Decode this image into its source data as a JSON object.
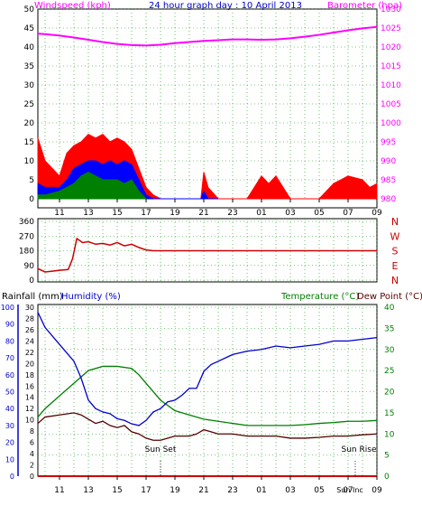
{
  "colors": {
    "wind": "#ff0000",
    "gust_fill": "#ff0000",
    "avg_fill": "#0000ff",
    "calm_fill": "#008000",
    "barometer": "#ff00ff",
    "winddir": "#cc0000",
    "humidity": "#0000cc",
    "temperature": "#008000",
    "dewpoint": "#550000",
    "rain": "#cc0000",
    "grid": "#009900",
    "axis_blue": "#0000cc",
    "frame": "#000000"
  },
  "chart_data": [
    {
      "type": "area",
      "title": "24 hour graph day : 10 April 2013",
      "left_axis_label": "Windspeed (kph)",
      "right_axis_label": "Barometer (hpa)",
      "x_tick_labels": [
        "11",
        "13",
        "15",
        "17",
        "19",
        "21",
        "23",
        "01",
        "03",
        "05",
        "07",
        "09"
      ],
      "left_ticks": [
        "0",
        "5",
        "10",
        "15",
        "20",
        "25",
        "30",
        "35",
        "40",
        "45",
        "50"
      ],
      "right_ticks": [
        "980",
        "985",
        "990",
        "995",
        "1000",
        "1005",
        "1010",
        "1015",
        "1020",
        "1025",
        "1030"
      ],
      "ylim_left": [
        0,
        50
      ],
      "ylim_right": [
        980,
        1030
      ],
      "grid": true,
      "series": [
        {
          "name": "Barometer",
          "x": [
            9.5,
            10,
            11,
            12,
            13,
            14,
            15,
            16,
            17,
            18,
            19,
            20,
            21,
            22,
            23,
            24,
            25,
            26,
            27,
            28,
            29,
            30,
            31,
            32,
            33
          ],
          "values": [
            1023.5,
            1023.4,
            1023.0,
            1022.5,
            1021.9,
            1021.3,
            1020.8,
            1020.5,
            1020.4,
            1020.6,
            1021.0,
            1021.3,
            1021.6,
            1021.8,
            1022.0,
            1022.0,
            1021.9,
            1022.0,
            1022.3,
            1022.7,
            1023.2,
            1023.8,
            1024.4,
            1024.9,
            1025.3
          ]
        },
        {
          "name": "Wind gust",
          "x": [
            9.5,
            10,
            11,
            11.5,
            12,
            12.5,
            13,
            13.5,
            14,
            14.5,
            15,
            15.5,
            16,
            16.5,
            17,
            17.5,
            18,
            19,
            20,
            20.8,
            21,
            21.3,
            22,
            23,
            24,
            25,
            25.5,
            26,
            26.5,
            27,
            28,
            29,
            30,
            31,
            32,
            32.5,
            33
          ],
          "values": [
            16,
            10,
            6,
            12,
            14,
            15,
            17,
            16,
            17,
            15,
            16,
            15,
            13,
            8,
            3,
            1,
            0,
            0,
            0,
            0,
            7,
            3,
            0,
            0,
            0,
            6,
            4,
            6,
            3,
            0,
            0,
            0,
            4,
            6,
            5,
            3,
            4
          ]
        },
        {
          "name": "Wind average",
          "x": [
            9.5,
            10,
            11,
            11.5,
            12,
            12.5,
            13,
            13.5,
            14,
            14.5,
            15,
            15.5,
            16,
            16.5,
            17,
            17.5,
            18,
            20.8,
            21,
            21.3,
            22
          ],
          "values": [
            4,
            3,
            3,
            5,
            8,
            9,
            10,
            10,
            9,
            10,
            9,
            10,
            9,
            5,
            1,
            0,
            0,
            0,
            2,
            0,
            0
          ]
        },
        {
          "name": "Calm",
          "x": [
            9.5,
            10,
            11,
            12,
            12.5,
            13,
            14,
            15,
            15.5,
            16,
            16.5,
            17
          ],
          "values": [
            1,
            1,
            2,
            4,
            6,
            7,
            5,
            5,
            4,
            5,
            2,
            0
          ]
        }
      ]
    },
    {
      "type": "line",
      "right_axis_label": "N W S E N",
      "left_ticks": [
        "0",
        "90",
        "180",
        "270",
        "360"
      ],
      "ylim": [
        0,
        360
      ],
      "grid": true,
      "series": [
        {
          "name": "Wind direction",
          "x": [
            9.5,
            10,
            10.5,
            11,
            11.6,
            11.9,
            12.2,
            12.6,
            13,
            13.5,
            14,
            14.5,
            15,
            15.5,
            16,
            16.5,
            17,
            17.5,
            18,
            20,
            22,
            24,
            26,
            28,
            30,
            32,
            33
          ],
          "values": [
            70,
            50,
            55,
            60,
            65,
            130,
            255,
            230,
            235,
            220,
            225,
            215,
            230,
            210,
            220,
            200,
            185,
            180,
            180,
            180,
            180,
            180,
            180,
            180,
            180,
            180,
            180
          ]
        }
      ]
    },
    {
      "type": "line",
      "left_axis_label_1": "Rainfall (mm)",
      "left_axis_label_2": "Humidity (%)",
      "right_axis_label_1": "Temperature (°C)",
      "right_axis_label_2": "Dew Point (°C)",
      "humidity_ticks": [
        "0",
        "10",
        "20",
        "30",
        "40",
        "50",
        "60",
        "70",
        "80",
        "90",
        "100"
      ],
      "rain_ticks": [
        "0",
        "2",
        "4",
        "6",
        "8",
        "10",
        "12",
        "14",
        "16",
        "18",
        "20",
        "22",
        "24",
        "26",
        "28",
        "30"
      ],
      "temp_ticks": [
        "0",
        "5",
        "10",
        "15",
        "20",
        "25",
        "30",
        "35",
        "40"
      ],
      "x_tick_labels": [
        "11",
        "13",
        "15",
        "17",
        "19",
        "21",
        "23",
        "01",
        "03",
        "05",
        "07",
        "09"
      ],
      "ylim_humidity": [
        0,
        100
      ],
      "ylim_temp": [
        0,
        40
      ],
      "grid": true,
      "annotations": [
        {
          "text": "Sun Set",
          "x": 18.0
        },
        {
          "text": "Sun Rise",
          "x": 31.5
        },
        {
          "text": "Sun Inc",
          "x": 31.5
        }
      ],
      "series": [
        {
          "name": "Humidity",
          "x": [
            9.5,
            10,
            11,
            12,
            12.5,
            13,
            13.5,
            14,
            14.5,
            15,
            15.5,
            16,
            16.5,
            17,
            17.5,
            18,
            18.5,
            19,
            19.5,
            20,
            20.5,
            21,
            21.5,
            22,
            23,
            24,
            25,
            26,
            27,
            28,
            29,
            30,
            31,
            32,
            33
          ],
          "values": [
            97,
            88,
            78,
            68,
            58,
            45,
            40,
            38,
            37,
            34,
            33,
            31,
            30,
            33,
            38,
            40,
            44,
            45,
            48,
            52,
            52,
            62,
            66,
            68,
            72,
            74,
            75,
            77,
            76,
            77,
            78,
            80,
            80,
            81,
            82
          ]
        },
        {
          "name": "Temperature",
          "x": [
            9.5,
            10,
            11,
            12,
            13,
            14,
            15,
            16,
            16.5,
            17,
            18,
            19,
            20,
            21,
            22,
            23,
            24,
            25,
            26,
            27,
            28,
            29,
            30,
            31,
            32,
            33
          ],
          "values": [
            14,
            16,
            19,
            22,
            25,
            26,
            26,
            25.5,
            24,
            22,
            18,
            15.5,
            14.5,
            13.5,
            13,
            12.5,
            12,
            12,
            12,
            12,
            12.2,
            12.5,
            12.7,
            13,
            13,
            13.2
          ]
        },
        {
          "name": "Dew Point",
          "x": [
            9.5,
            10,
            11,
            12,
            12.5,
            13,
            13.5,
            14,
            14.5,
            15,
            15.5,
            16,
            16.5,
            17,
            17.5,
            18,
            19,
            20,
            20.5,
            21,
            21.5,
            22,
            23,
            24,
            25,
            26,
            27,
            28,
            29,
            30,
            31,
            32,
            33
          ],
          "values": [
            12.5,
            14,
            14.5,
            15,
            14.5,
            13.5,
            12.5,
            13,
            12,
            11.5,
            12,
            10.5,
            10,
            9,
            8.5,
            8.5,
            9.5,
            9.5,
            10,
            11,
            10.5,
            10,
            10,
            9.5,
            9.5,
            9.5,
            9,
            9,
            9.2,
            9.5,
            9.5,
            9.8,
            10
          ]
        },
        {
          "name": "Rainfall",
          "x": [
            9.5,
            33
          ],
          "values": [
            0,
            0
          ]
        }
      ]
    }
  ]
}
